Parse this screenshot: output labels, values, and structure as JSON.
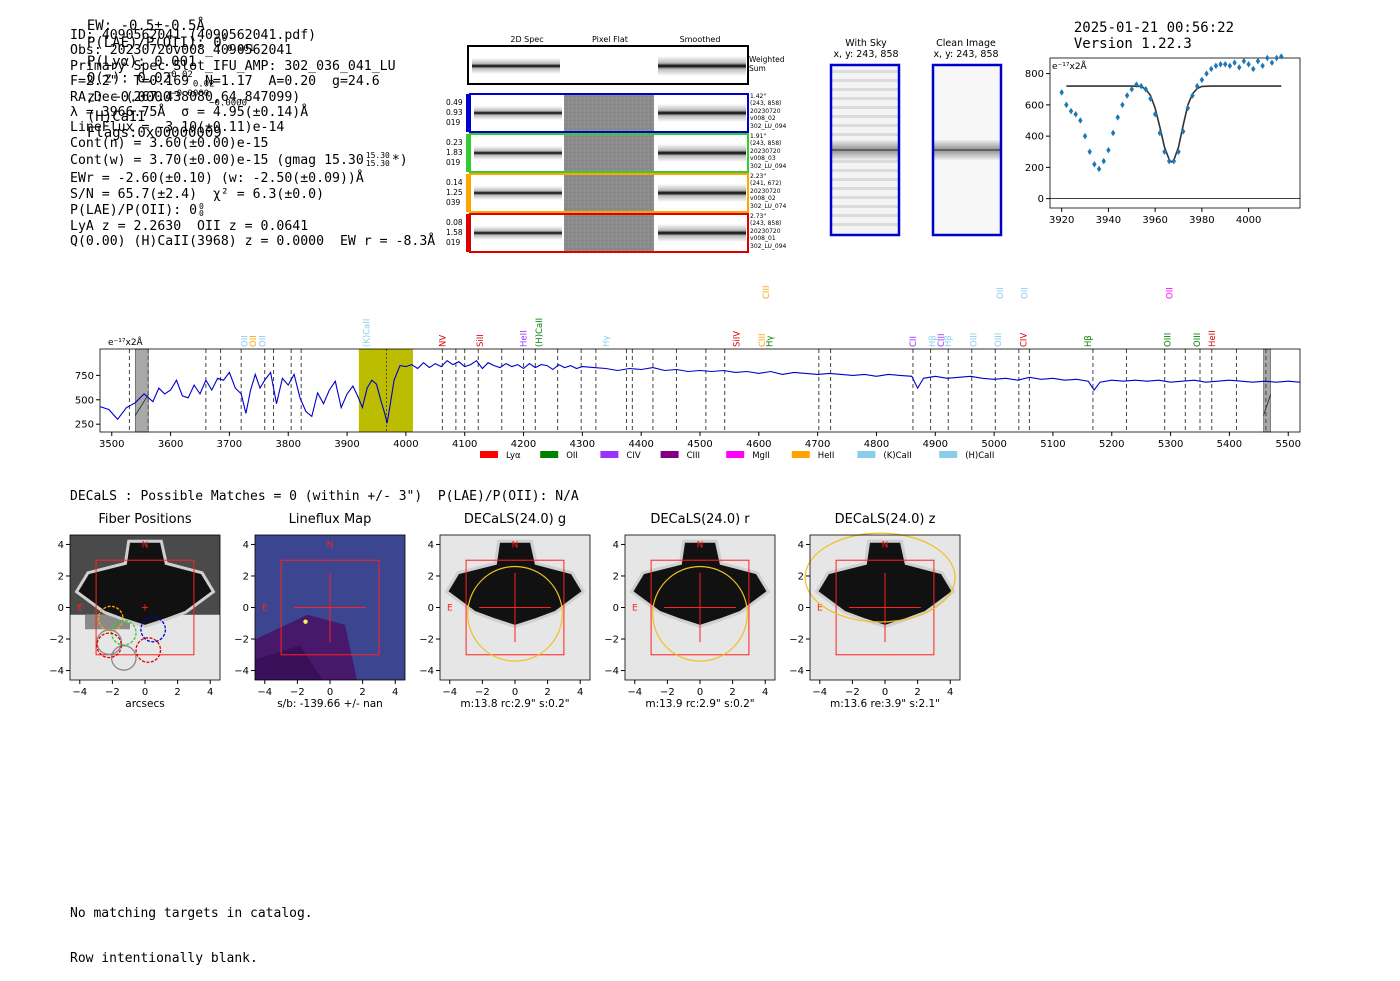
{
  "header": {
    "left": "EW: -0.5±-0.5Å  P(LAE)/P(OII): 0 0 0.001   P(Lyα): 0.001  Q(z): 0.02 0.02 0.02  z: −0.0000 −0.0000 −0.0000  (H)CaII  Flags:0x00000009",
    "ew": "EW: -0.5±-0.5Å",
    "plae": "P(LAE)/P(OII): 0",
    "plae_sup": "0",
    "plae_sub": "0.001",
    "plya": "P(Lyα): 0.001",
    "qz": "Q(z): 0.02",
    "qz_sup": "0.02",
    "qz_sub": "0.02",
    "z": "z: −0.0000",
    "z_sup": "−0.0000",
    "z_sub": "−0.0000",
    "line_id": "(H)CaII",
    "flags": "Flags:0x00000009",
    "datetime": "2025-01-21 00:56:22",
    "version": "Version 1.22.3"
  },
  "info": {
    "lines": [
      "ID: 4090562041 (4090562041.pdf)",
      "Obs: 20230720v008_4090562041",
      "Primary Spec_Slot_IFU_AMP: 302_036_041_LU",
      "F=2.2\"  T=0.169  N=1.17  A=0.20  g=24.6",
      "RA,Dec (267.438080,64.847099)",
      "λ = 3966.75Å  σ = 4.95(±0.14)Å",
      "LineFlux = -3.10(±0.11)e-14",
      "Cont(n) = 3.60(±0.00)e-15",
      "Cont(w) = 3.70(±0.00)e-15 (gmag 15.30",
      "EWr = -2.60(±0.10) (w: -2.50(±0.09))Å",
      "S/N = 65.7(±2.4)  χ² = 6.3(±0.0)",
      "P(LAE)/P(OII): 0",
      "LyA z = 2.2630  OII z = 0.0641",
      "Q(0.00) (H)CaII(3968) z = 0.0000  EW r = -8.3Å"
    ],
    "gmag_sup": "15.30",
    "gmag_sub": "15.30",
    "gmag_tail": "*)",
    "plae_sup": "0",
    "plae_sub": "0"
  },
  "cutouts": {
    "col_headers": [
      "2D Spec",
      "Pixel Flat",
      "Smoothed"
    ],
    "weighted_label": "Weighted Sum",
    "rows": [
      {
        "color": "#0000cc",
        "left": [
          "0.49",
          "0.93",
          "019"
        ],
        "right": [
          "1.42\"",
          "(243, 858)",
          "20230720",
          "v008_02",
          "302_LU_094"
        ]
      },
      {
        "color": "#33cc33",
        "left": [
          "0.23",
          "1.83",
          "019"
        ],
        "right": [
          "1.91\"",
          "(243, 858)",
          "20230720",
          "v008_03",
          "302_LU_094"
        ]
      },
      {
        "color": "#ffa500",
        "left": [
          "0.14",
          "1.25",
          "039"
        ],
        "right": [
          "2.23\"",
          "(241, 672)",
          "20230720",
          "v008_02",
          "302_LU_074"
        ]
      },
      {
        "color": "#dd0000",
        "left": [
          "0.08",
          "1.58",
          "019"
        ],
        "right": [
          "2.73\"",
          "(243, 858)",
          "20230720",
          "v008_01",
          "302_LU_094"
        ]
      }
    ],
    "with_sky_title": "With Sky",
    "with_sky_sub": "x, y: 243, 858",
    "clean_title": "Clean Image",
    "clean_sub": "x, y: 243, 858"
  },
  "fit_chart": {
    "type": "scatter",
    "unit_label": "e⁻¹⁷x2Å",
    "xlim": [
      3915,
      4022
    ],
    "ylim": [
      -60,
      900
    ],
    "xticks": [
      3920,
      3940,
      3960,
      3980,
      4000
    ],
    "yticks": [
      0,
      200,
      400,
      600,
      800
    ],
    "points_x": [
      3920,
      3922,
      3924,
      3926,
      3928,
      3930,
      3932,
      3934,
      3936,
      3938,
      3940,
      3942,
      3944,
      3946,
      3948,
      3950,
      3952,
      3954,
      3956,
      3958,
      3960,
      3962,
      3964,
      3966,
      3968,
      3970,
      3972,
      3974,
      3976,
      3978,
      3980,
      3982,
      3984,
      3986,
      3988,
      3990,
      3992,
      3994,
      3996,
      3998,
      4000,
      4002,
      4004,
      4006,
      4008,
      4010,
      4012,
      4014
    ],
    "points_y": [
      680,
      600,
      560,
      540,
      500,
      400,
      300,
      220,
      190,
      240,
      310,
      420,
      520,
      600,
      660,
      700,
      730,
      720,
      700,
      640,
      540,
      420,
      300,
      240,
      240,
      300,
      430,
      580,
      660,
      720,
      760,
      800,
      830,
      850,
      860,
      860,
      850,
      870,
      840,
      880,
      860,
      830,
      880,
      850,
      900,
      870,
      900,
      910
    ],
    "fit_x": [
      3922,
      3950,
      3954,
      3956,
      3958,
      3960,
      3962,
      3964,
      3966,
      3967,
      3968,
      3970,
      3972,
      3974,
      3976,
      3978,
      3980,
      3984,
      4014
    ],
    "fit_y": [
      720,
      720,
      718,
      700,
      660,
      580,
      460,
      330,
      250,
      235,
      245,
      330,
      470,
      600,
      670,
      705,
      718,
      720,
      720
    ]
  },
  "spectrum": {
    "type": "line",
    "unit_label": "e⁻¹⁷x2Å",
    "xlim": [
      3480,
      5520
    ],
    "ylim": [
      170,
      1020
    ],
    "xticks": [
      3500,
      3600,
      3700,
      3800,
      3900,
      4000,
      4100,
      4200,
      4300,
      4400,
      4500,
      4600,
      4700,
      4800,
      4900,
      5000,
      5100,
      5200,
      5300,
      5400,
      5500
    ],
    "yticks": [
      250,
      500,
      750
    ],
    "highlight": [
      3920,
      4012
    ],
    "masked": [
      [
        3540,
        3562
      ],
      [
        5458,
        5470
      ]
    ],
    "dashes": [
      3530,
      3562,
      3660,
      3685,
      3720,
      3760,
      3775,
      3805,
      3822,
      4062,
      4085,
      4100,
      4123,
      4163,
      4200,
      4220,
      4258,
      4298,
      4323,
      4375,
      4385,
      4420,
      4460,
      4510,
      4542,
      4702,
      4722,
      4862,
      4892,
      4922,
      4962,
      5002,
      5042,
      5060,
      5168,
      5225,
      5290,
      5325,
      5350,
      5370,
      5412,
      5462
    ],
    "line_labels": [
      {
        "wave": 3726,
        "text": "OII",
        "color": "#87ceeb"
      },
      {
        "wave": 3740,
        "text": "OII",
        "color": "#ffa500"
      },
      {
        "wave": 3756,
        "text": "OII",
        "color": "#87ceeb"
      },
      {
        "wave": 3933,
        "text": "(K)CaII",
        "color": "#87ceeb"
      },
      {
        "wave": 4062,
        "text": "NV",
        "color": "#dd0000"
      },
      {
        "wave": 4126,
        "text": "SiII",
        "color": "#dd0000"
      },
      {
        "wave": 4200,
        "text": "HeII",
        "color": "#9933ff"
      },
      {
        "wave": 4226,
        "text": "(H)CaII",
        "color": "#008000"
      },
      {
        "wave": 4340,
        "text": "Hγ",
        "color": "#87ceeb"
      },
      {
        "wave": 4562,
        "text": "SiIV",
        "color": "#dd0000"
      },
      {
        "wave": 4605,
        "text": "CIII",
        "color": "#ffa500"
      },
      {
        "wave": 4618,
        "text": "Hγ",
        "color": "#008000"
      },
      {
        "wave": 4862,
        "text": "CII",
        "color": "#9933ff"
      },
      {
        "wave": 4895,
        "text": "Hβ",
        "color": "#87ceeb"
      },
      {
        "wave": 4910,
        "text": "CIII",
        "color": "#9933ff"
      },
      {
        "wave": 4922,
        "text": "Hβ",
        "color": "#87ceeb"
      },
      {
        "wave": 4965,
        "text": "OIII",
        "color": "#87ceeb"
      },
      {
        "wave": 5007,
        "text": "OIII",
        "color": "#87ceeb"
      },
      {
        "wave": 5050,
        "text": "CIV",
        "color": "#dd0000"
      },
      {
        "wave": 5160,
        "text": "Hβ",
        "color": "#008000"
      },
      {
        "wave": 5295,
        "text": "OIII",
        "color": "#008000"
      },
      {
        "wave": 5345,
        "text": "OIII",
        "color": "#008000"
      },
      {
        "wave": 5370,
        "text": "HeII",
        "color": "#dd0000"
      }
    ],
    "upper_labels": [
      {
        "wave": 4612,
        "text": "CIII",
        "color": "#ffa500"
      },
      {
        "wave": 5010,
        "text": "OII",
        "color": "#87ceeb"
      },
      {
        "wave": 5052,
        "text": "OII",
        "color": "#87ceeb"
      },
      {
        "wave": 5298,
        "text": "OII",
        "color": "#ff00ff"
      }
    ],
    "legend": [
      {
        "name": "Lyα",
        "color": "#ff0000"
      },
      {
        "name": "OII",
        "color": "#008000"
      },
      {
        "name": "CIV",
        "color": "#9933ff"
      },
      {
        "name": "CIII",
        "color": "#800080"
      },
      {
        "name": "MgII",
        "color": "#ff00ff"
      },
      {
        "name": "HeII",
        "color": "#ffa500"
      },
      {
        "name": "(K)CaII",
        "color": "#87ceeb"
      },
      {
        "name": "(H)CaII",
        "color": "#87ceeb"
      }
    ],
    "x": [
      3480,
      3495,
      3510,
      3525,
      3540,
      3555,
      3570,
      3580,
      3590,
      3600,
      3610,
      3620,
      3630,
      3640,
      3650,
      3660,
      3670,
      3680,
      3690,
      3700,
      3710,
      3720,
      3728,
      3736,
      3744,
      3752,
      3760,
      3770,
      3780,
      3790,
      3800,
      3810,
      3820,
      3830,
      3840,
      3850,
      3860,
      3870,
      3880,
      3890,
      3900,
      3910,
      3918,
      3926,
      3934,
      3942,
      3950,
      3958,
      3964,
      3968,
      3972,
      3980,
      3990,
      4000,
      4010,
      4020,
      4030,
      4040,
      4050,
      4060,
      4070,
      4080,
      4090,
      4100,
      4110,
      4120,
      4130,
      4140,
      4150,
      4160,
      4170,
      4180,
      4190,
      4200,
      4210,
      4220,
      4230,
      4240,
      4250,
      4260,
      4270,
      4280,
      4290,
      4300,
      4320,
      4340,
      4360,
      4380,
      4400,
      4420,
      4440,
      4460,
      4480,
      4500,
      4520,
      4540,
      4560,
      4580,
      4600,
      4620,
      4640,
      4660,
      4680,
      4700,
      4720,
      4740,
      4760,
      4780,
      4800,
      4820,
      4840,
      4860,
      4870,
      4880,
      4900,
      4920,
      4940,
      4960,
      4980,
      5000,
      5020,
      5040,
      5060,
      5080,
      5100,
      5120,
      5140,
      5160,
      5170,
      5180,
      5200,
      5220,
      5240,
      5260,
      5280,
      5300,
      5320,
      5340,
      5360,
      5380,
      5400,
      5420,
      5440,
      5460,
      5480,
      5500,
      5520
    ],
    "y": [
      430,
      400,
      300,
      420,
      470,
      560,
      480,
      620,
      560,
      600,
      700,
      540,
      520,
      650,
      560,
      700,
      600,
      720,
      700,
      780,
      620,
      560,
      360,
      600,
      760,
      620,
      700,
      780,
      460,
      720,
      650,
      760,
      520,
      380,
      330,
      570,
      460,
      600,
      690,
      420,
      560,
      640,
      540,
      420,
      620,
      700,
      660,
      480,
      360,
      260,
      400,
      700,
      850,
      840,
      860,
      820,
      880,
      830,
      870,
      840,
      900,
      860,
      890,
      840,
      860,
      900,
      820,
      880,
      850,
      830,
      870,
      840,
      860,
      820,
      870,
      830,
      860,
      850,
      810,
      860,
      830,
      850,
      820,
      840,
      830,
      820,
      800,
      820,
      810,
      830,
      800,
      810,
      790,
      800,
      790,
      800,
      780,
      790,
      770,
      790,
      760,
      780,
      770,
      760,
      770,
      760,
      750,
      760,
      740,
      760,
      750,
      740,
      620,
      720,
      740,
      720,
      730,
      740,
      720,
      710,
      720,
      700,
      730,
      710,
      720,
      700,
      710,
      690,
      600,
      680,
      700,
      690,
      700,
      690,
      700,
      680,
      690,
      700,
      680,
      690,
      700,
      690,
      680,
      690,
      680,
      690,
      680
    ]
  },
  "decals": {
    "summary": "DECaLS : Possible Matches = 0 (within +/- 3\")  P(LAE)/P(OII): N/A",
    "panels": [
      {
        "title": "Fiber Positions",
        "xlabel": "arcsecs"
      },
      {
        "title": "Lineflux Map",
        "xlabel": "s/b: -139.66 +/- nan"
      },
      {
        "title": "DECaLS(24.0) g",
        "xlabel": "m:13.8 rc:2.9\"  s:0.2\""
      },
      {
        "title": "DECaLS(24.0) r",
        "xlabel": "m:13.9 rc:2.9\"  s:0.2\""
      },
      {
        "title": "DECaLS(24.0) z",
        "xlabel": "m:13.6  re:3.9\"  s:2.1\""
      }
    ],
    "ticks": [
      -4,
      -2,
      0,
      2,
      4
    ],
    "compass_n": "N",
    "compass_e": "E"
  },
  "footer": {
    "line1": "No matching targets in catalog.",
    "line2": "Row intentionally blank."
  }
}
